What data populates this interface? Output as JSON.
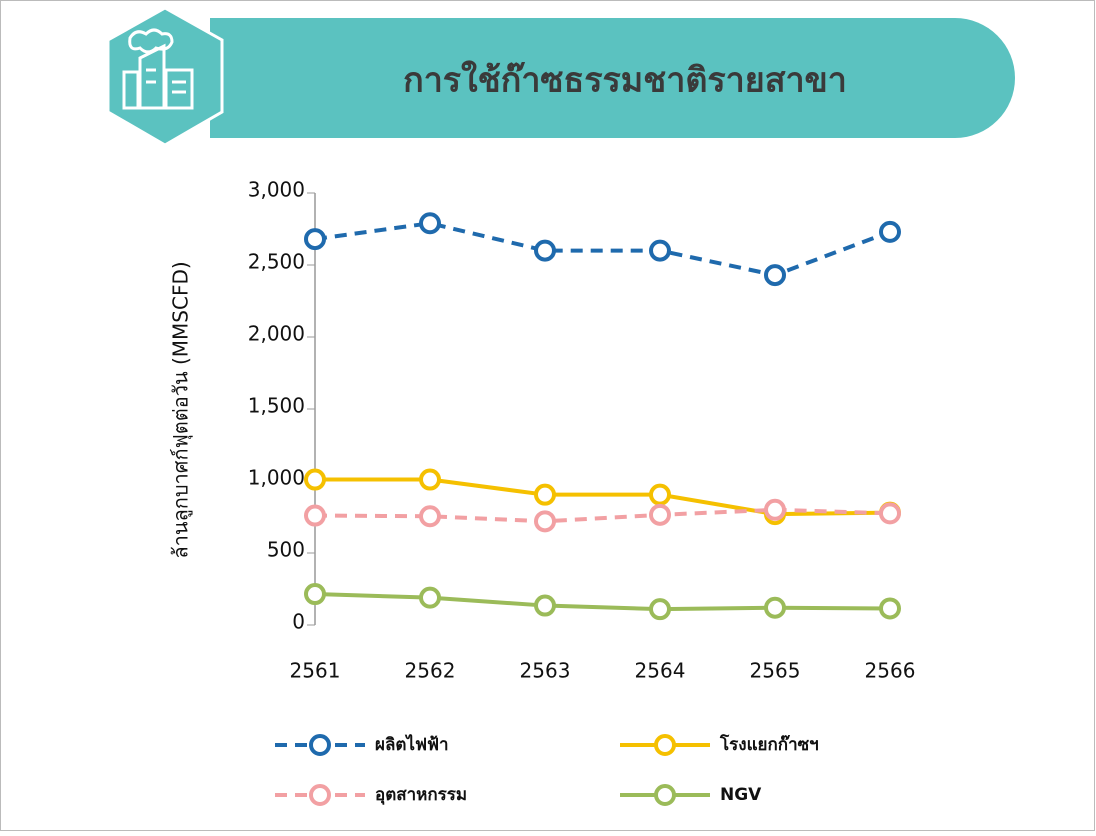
{
  "chart_data": {
    "type": "line",
    "title": "การใช้ก๊าซธรรมชาติรายสาขา",
    "y_label": "ล้านลูกบาศก์ฟุตต่อวัน (MMSCFD)",
    "categories": [
      "2561",
      "2562",
      "2563",
      "2564",
      "2565",
      "2566"
    ],
    "series": [
      {
        "name": "ผลิตไฟฟ้า",
        "color": "#1f6aad",
        "dashed": true,
        "values": [
          2680,
          2790,
          2600,
          2600,
          2430,
          2730
        ]
      },
      {
        "name": "โรงแยกก๊าซฯ",
        "color": "#f5c000",
        "dashed": false,
        "values": [
          1010,
          1010,
          905,
          905,
          770,
          780
        ]
      },
      {
        "name": "อุตสาหกรรม",
        "color": "#f2a0a3",
        "dashed": true,
        "values": [
          760,
          755,
          720,
          765,
          800,
          775
        ]
      },
      {
        "name": "NGV",
        "color": "#9bbb59",
        "dashed": false,
        "values": [
          215,
          190,
          135,
          110,
          120,
          115
        ]
      }
    ],
    "ylim": [
      0,
      3000
    ],
    "yticks": [
      0,
      500,
      {
        "value": 1000,
        "label": "1,000"
      },
      {
        "value": 1500,
        "label": "1,500"
      },
      {
        "value": 2000,
        "label": "2,000"
      },
      {
        "value": 2500,
        "label": "2,500"
      },
      {
        "value": 3000,
        "label": "3,000"
      }
    ],
    "grid": false,
    "legend": "bottom"
  }
}
